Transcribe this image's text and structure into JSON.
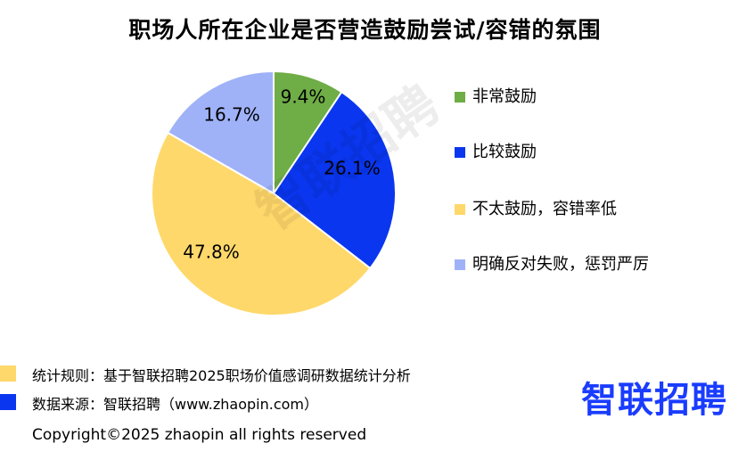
{
  "chart_data": {
    "type": "pie",
    "title": "职场人所在企业是否营造鼓励尝试/容错的氛围",
    "categories": [
      "非常鼓励",
      "比较鼓励",
      "不太鼓励，容错率低",
      "明确反对失败，惩罚严厉"
    ],
    "values": [
      9.4,
      26.1,
      47.8,
      16.7
    ],
    "labels": [
      "9.4%",
      "26.1%",
      "47.8%",
      "16.7%"
    ],
    "colors": [
      "#6fad47",
      "#0a36f0",
      "#ffd86b",
      "#9fb2f8"
    ],
    "legend_position": "right"
  },
  "notes": {
    "rule": "统计规则：基于智联招聘2025职场价值感调研数据统计分析",
    "source": "数据来源：智联招聘（www.zhaopin.com）",
    "rule_color": "#ffd86b",
    "source_color": "#0a36f0"
  },
  "logo": "智联招聘",
  "watermark": "智联招聘",
  "copyright": "Copyright©2025 zhaopin all rights reserved"
}
